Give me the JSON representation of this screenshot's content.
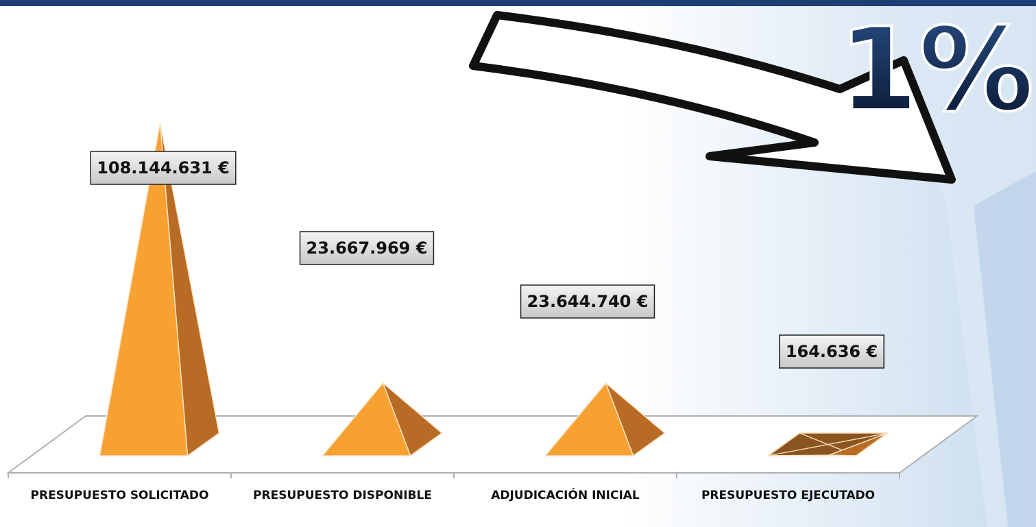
{
  "chart_data": {
    "type": "pyramid",
    "categories": [
      "PRESUPUESTO SOLICITADO",
      "PRESUPUESTO DISPONIBLE",
      "ADJUDICACIÓN INICIAL",
      "PRESUPUESTO EJECUTADO"
    ],
    "values": [
      108144631,
      23667969,
      23644740,
      164636
    ],
    "value_labels": [
      "108.144.631 €",
      "23.667.969 €",
      "23.644.740 €",
      "164.636 €"
    ],
    "color": "#f7a133",
    "annotation": "1%"
  }
}
